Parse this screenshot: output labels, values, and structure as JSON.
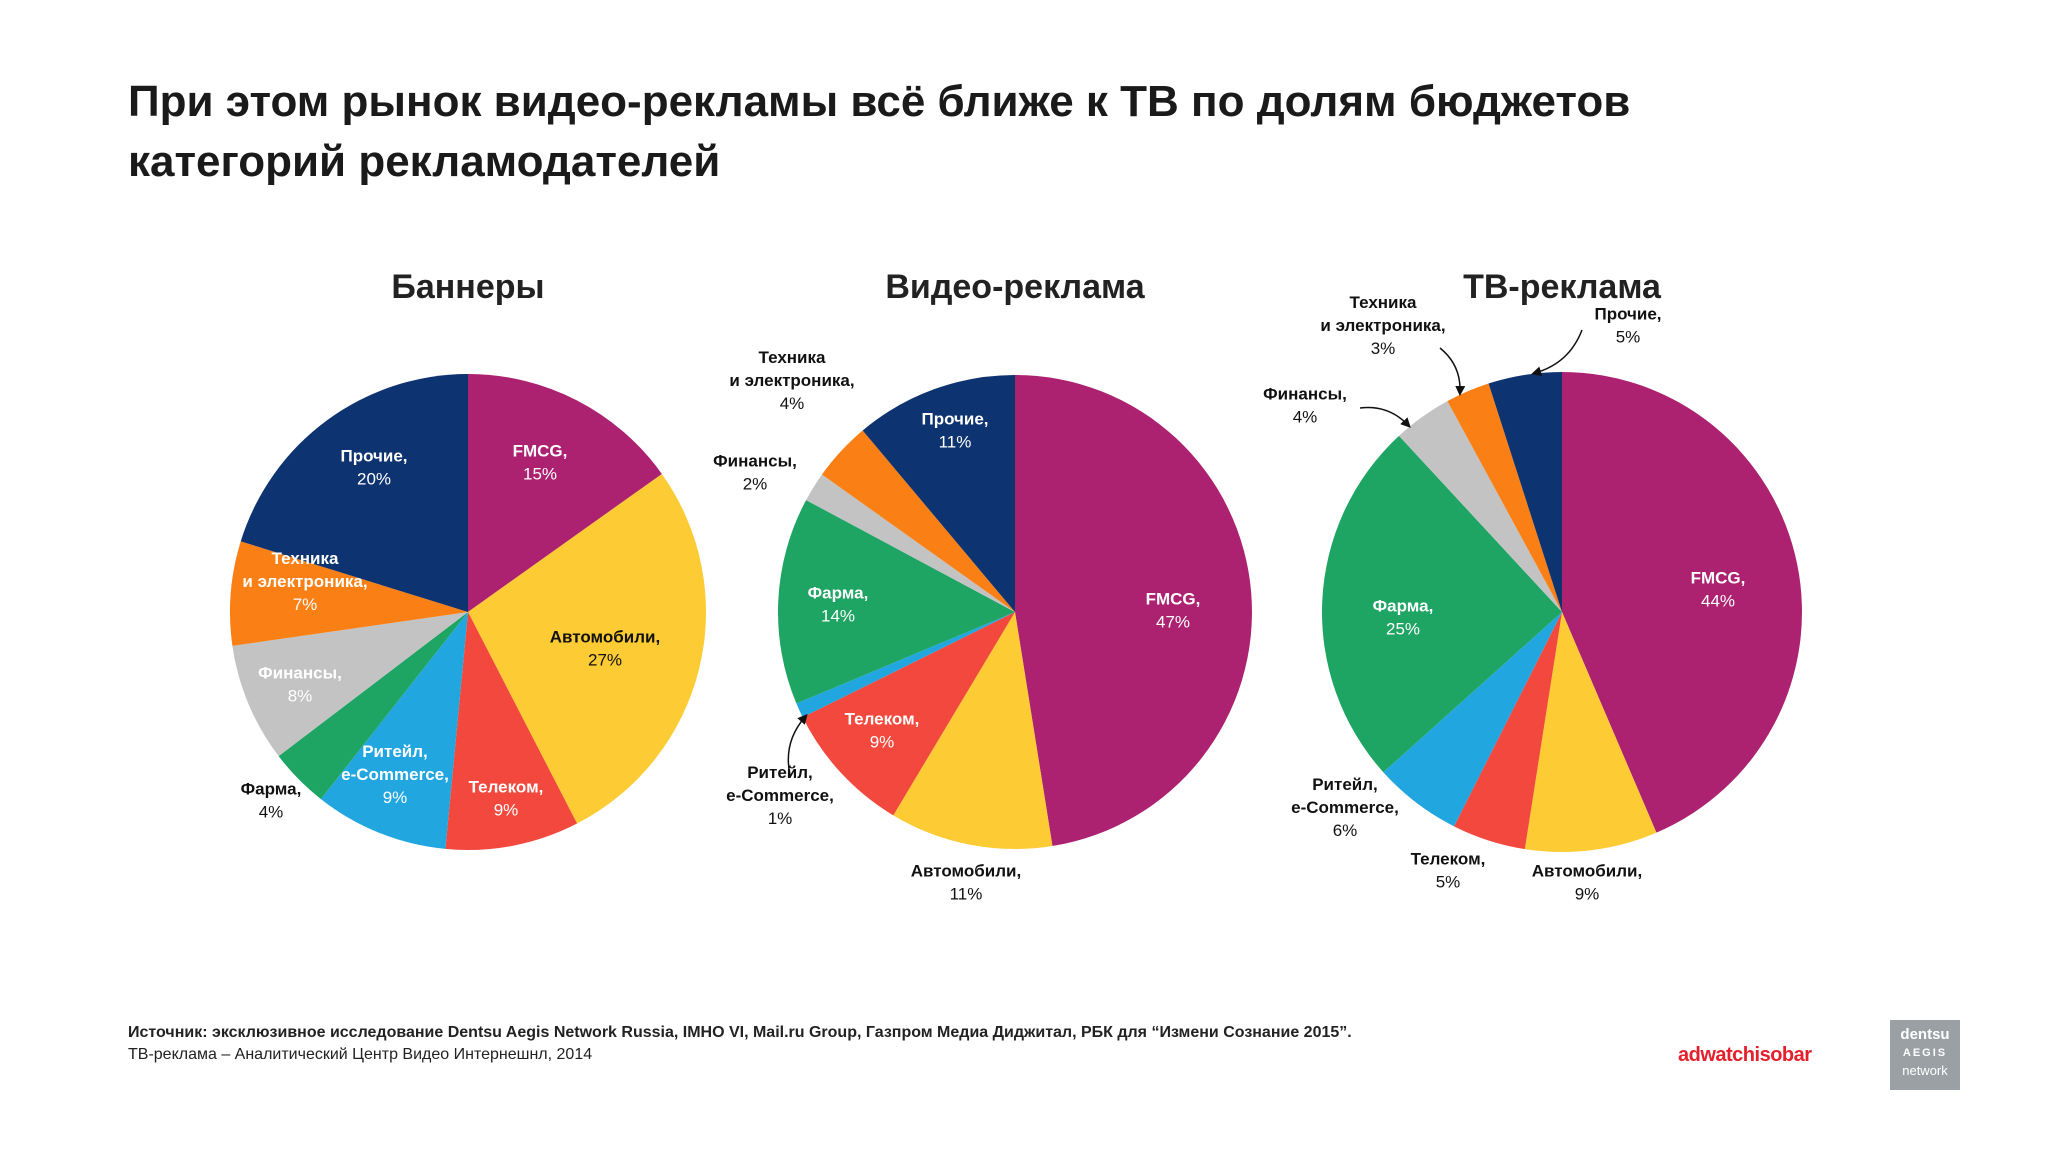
{
  "title": {
    "line1": "При этом рынок видео-рекламы всё ближе к ТВ по долям бюджетов",
    "line2": "категорий рекламодателей"
  },
  "colors": {
    "fmcg": "#ac2271",
    "auto": "#fdcb33",
    "telecom": "#f3483d",
    "retail": "#22a6e0",
    "pharma": "#1ea463",
    "finance": "#c3c3c4",
    "tech": "#fa7f14",
    "other": "#0d3370"
  },
  "chart_data": [
    {
      "type": "pie",
      "title": "Баннеры",
      "slices": [
        {
          "key": "fmcg",
          "name": "FMCG,",
          "value": 15,
          "label": "15%"
        },
        {
          "key": "auto",
          "name": "Автомобили,",
          "value": 27,
          "label": "27%"
        },
        {
          "key": "telecom",
          "name": "Телеком,",
          "value": 9,
          "label": "9%"
        },
        {
          "key": "retail",
          "name": "Ритейл,|e-Commerce,",
          "value": 9,
          "label": "9%"
        },
        {
          "key": "pharma",
          "name": "Фарма,",
          "value": 4,
          "label": "4%"
        },
        {
          "key": "finance",
          "name": "Финансы,",
          "value": 8,
          "label": "8%"
        },
        {
          "key": "tech",
          "name": "Техника|и электроника,",
          "value": 7,
          "label": "7%"
        },
        {
          "key": "other",
          "name": "Прочие,",
          "value": 20,
          "label": "20%"
        }
      ]
    },
    {
      "type": "pie",
      "title": "Видео-реклама",
      "slices": [
        {
          "key": "fmcg",
          "name": "FMCG,",
          "value": 47,
          "label": "47%"
        },
        {
          "key": "auto",
          "name": "Автомобили,",
          "value": 11,
          "label": "11%"
        },
        {
          "key": "telecom",
          "name": "Телеком,",
          "value": 9,
          "label": "9%"
        },
        {
          "key": "retail",
          "name": "Ритейл,|e-Commerce,",
          "value": 1,
          "label": "1%"
        },
        {
          "key": "pharma",
          "name": "Фарма,",
          "value": 14,
          "label": "14%"
        },
        {
          "key": "finance",
          "name": "Финансы,",
          "value": 2,
          "label": "2%"
        },
        {
          "key": "tech",
          "name": "Техника|и электроника,",
          "value": 4,
          "label": "4%"
        },
        {
          "key": "other",
          "name": "Прочие,",
          "value": 11,
          "label": "11%"
        }
      ]
    },
    {
      "type": "pie",
      "title": "ТВ-реклама",
      "slices": [
        {
          "key": "fmcg",
          "name": "FMCG,",
          "value": 44,
          "label": "44%"
        },
        {
          "key": "auto",
          "name": "Автомобили,",
          "value": 9,
          "label": "9%"
        },
        {
          "key": "telecom",
          "name": "Телеком,",
          "value": 5,
          "label": "5%"
        },
        {
          "key": "retail",
          "name": "Ритейл,|e-Commerce,",
          "value": 6,
          "label": "6%"
        },
        {
          "key": "pharma",
          "name": "Фарма,",
          "value": 25,
          "label": "25%"
        },
        {
          "key": "finance",
          "name": "Финансы,",
          "value": 4,
          "label": "4%"
        },
        {
          "key": "tech",
          "name": "Техника|и электроника,",
          "value": 3,
          "label": "3%"
        },
        {
          "key": "other",
          "name": "Прочие,",
          "value": 5,
          "label": "5%"
        }
      ]
    }
  ],
  "footer": {
    "source_label": "Источник",
    "source_text": ": эксклюзивное исследование Dentsu Aegis Network Russia, IMHO VI, Mail.ru Group, Газпром Медиа Диджитал, РБК для “Измени Сознание 2015”.",
    "tv_note": "ТВ-реклама – Аналитический Центр Видео Интернешнл, 2014"
  },
  "brands": {
    "adwatch": "adwatch",
    "isobar": "isobar",
    "dentsu_line1": "dentsu",
    "dentsu_line2": "AEGIS",
    "dentsu_line3": "network"
  }
}
